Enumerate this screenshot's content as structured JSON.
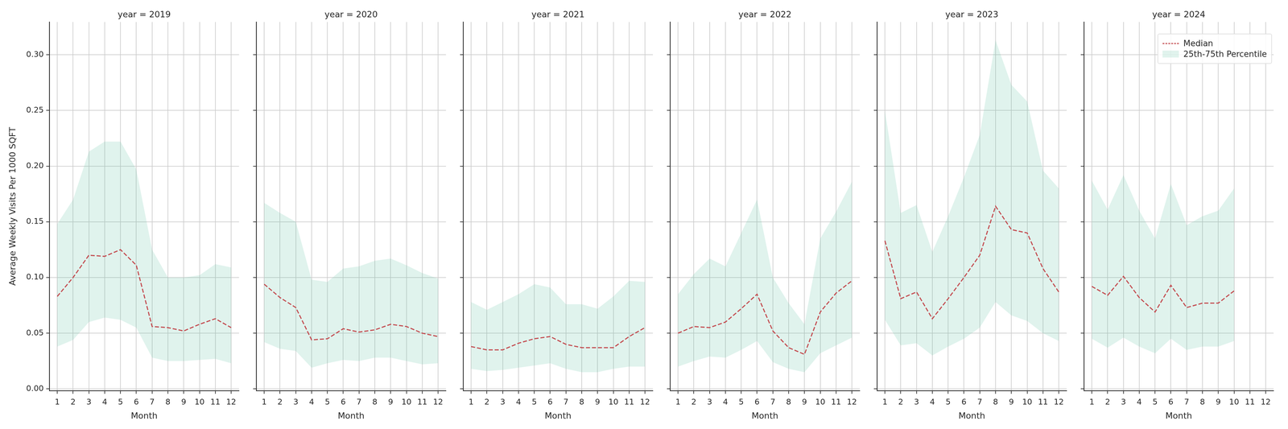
{
  "chart_data": [
    {
      "type": "line",
      "title": "year = 2019",
      "x_label": "Month",
      "y_label": "Average Weekly Visits Per 1000 SQFT",
      "categories": [
        "1",
        "2",
        "3",
        "4",
        "5",
        "6",
        "7",
        "8",
        "9",
        "10",
        "11",
        "12"
      ],
      "ylim": [
        -0.0016,
        0.3294
      ],
      "yticks": [
        {
          "value": 0,
          "label": "0.00"
        },
        {
          "value": 0.05,
          "label": "0.05"
        },
        {
          "value": 0.1,
          "label": "0.10"
        },
        {
          "value": 0.15,
          "label": "0.15"
        },
        {
          "value": 0.2,
          "label": "0.20"
        },
        {
          "value": 0.25,
          "label": "0.25"
        },
        {
          "value": 0.3,
          "label": "0.30"
        }
      ],
      "grid": true,
      "series": [
        {
          "name": "Median",
          "type": "line",
          "color": "#c44e52",
          "line_style": "dashed",
          "values": [
            0.083,
            0.1,
            0.12,
            0.119,
            0.125,
            0.111,
            0.056,
            0.055,
            0.052,
            0.058,
            0.063,
            0.055
          ]
        },
        {
          "name": "25th-75th Percentile",
          "type": "band",
          "color": "#66c2a5",
          "lower": [
            0.038,
            0.044,
            0.06,
            0.064,
            0.062,
            0.055,
            0.028,
            0.025,
            0.025,
            0.026,
            0.027,
            0.023
          ],
          "upper": [
            0.148,
            0.17,
            0.213,
            0.222,
            0.222,
            0.197,
            0.125,
            0.1,
            0.1,
            0.102,
            0.112,
            0.109
          ]
        }
      ]
    },
    {
      "type": "line",
      "title": "year = 2020",
      "x_label": "Month",
      "tick_labels": "x",
      "categories": [
        "1",
        "2",
        "3",
        "4",
        "5",
        "6",
        "7",
        "8",
        "9",
        "10",
        "11",
        "12"
      ],
      "ylim": [
        -0.0016,
        0.3294
      ],
      "yticks": [
        {
          "value": 0,
          "label": "0.00"
        },
        {
          "value": 0.05,
          "label": "0.05"
        },
        {
          "value": 0.1,
          "label": "0.10"
        },
        {
          "value": 0.15,
          "label": "0.15"
        },
        {
          "value": 0.2,
          "label": "0.20"
        },
        {
          "value": 0.25,
          "label": "0.25"
        },
        {
          "value": 0.3,
          "label": "0.30"
        }
      ],
      "grid": true,
      "series": [
        {
          "name": "Median",
          "type": "line",
          "color": "#c44e52",
          "line_style": "dashed",
          "values": [
            0.094,
            0.082,
            0.073,
            0.044,
            0.045,
            0.054,
            0.051,
            0.053,
            0.058,
            0.056,
            0.05,
            0.047
          ]
        },
        {
          "name": "25th-75th Percentile",
          "type": "band",
          "color": "#66c2a5",
          "lower": [
            0.042,
            0.036,
            0.034,
            0.019,
            0.023,
            0.026,
            0.025,
            0.028,
            0.028,
            0.025,
            0.022,
            0.023
          ],
          "upper": [
            0.167,
            0.158,
            0.15,
            0.098,
            0.096,
            0.108,
            0.11,
            0.115,
            0.117,
            0.111,
            0.104,
            0.099
          ]
        }
      ]
    },
    {
      "type": "line",
      "title": "year = 2021",
      "x_label": "Month",
      "tick_labels": "x",
      "categories": [
        "1",
        "2",
        "3",
        "4",
        "5",
        "6",
        "7",
        "8",
        "9",
        "10",
        "11",
        "12"
      ],
      "ylim": [
        -0.0016,
        0.3294
      ],
      "yticks": [
        {
          "value": 0,
          "label": "0.00"
        },
        {
          "value": 0.05,
          "label": "0.05"
        },
        {
          "value": 0.1,
          "label": "0.10"
        },
        {
          "value": 0.15,
          "label": "0.15"
        },
        {
          "value": 0.2,
          "label": "0.20"
        },
        {
          "value": 0.25,
          "label": "0.25"
        },
        {
          "value": 0.3,
          "label": "0.30"
        }
      ],
      "grid": true,
      "series": [
        {
          "name": "Median",
          "type": "line",
          "color": "#c44e52",
          "line_style": "dashed",
          "values": [
            0.038,
            0.035,
            0.035,
            0.041,
            0.045,
            0.047,
            0.04,
            0.037,
            0.037,
            0.037,
            0.047,
            0.055
          ]
        },
        {
          "name": "25th-75th Percentile",
          "type": "band",
          "color": "#66c2a5",
          "lower": [
            0.018,
            0.016,
            0.017,
            0.019,
            0.021,
            0.023,
            0.018,
            0.015,
            0.015,
            0.018,
            0.02,
            0.02
          ],
          "upper": [
            0.078,
            0.071,
            0.078,
            0.085,
            0.094,
            0.091,
            0.076,
            0.076,
            0.072,
            0.083,
            0.097,
            0.096
          ]
        }
      ]
    },
    {
      "type": "line",
      "title": "year = 2022",
      "x_label": "Month",
      "tick_labels": "x",
      "categories": [
        "1",
        "2",
        "3",
        "4",
        "5",
        "6",
        "7",
        "8",
        "9",
        "10",
        "11",
        "12"
      ],
      "ylim": [
        -0.0016,
        0.3294
      ],
      "yticks": [
        {
          "value": 0,
          "label": "0.00"
        },
        {
          "value": 0.05,
          "label": "0.05"
        },
        {
          "value": 0.1,
          "label": "0.10"
        },
        {
          "value": 0.15,
          "label": "0.15"
        },
        {
          "value": 0.2,
          "label": "0.20"
        },
        {
          "value": 0.25,
          "label": "0.25"
        },
        {
          "value": 0.3,
          "label": "0.30"
        }
      ],
      "grid": true,
      "series": [
        {
          "name": "Median",
          "type": "line",
          "color": "#c44e52",
          "line_style": "dashed",
          "values": [
            0.05,
            0.056,
            0.055,
            0.06,
            0.072,
            0.085,
            0.052,
            0.037,
            0.031,
            0.069,
            0.086,
            0.097
          ]
        },
        {
          "name": "25th-75th Percentile",
          "type": "band",
          "color": "#66c2a5",
          "lower": [
            0.02,
            0.025,
            0.029,
            0.028,
            0.035,
            0.043,
            0.024,
            0.018,
            0.015,
            0.032,
            0.039,
            0.046
          ],
          "upper": [
            0.085,
            0.103,
            0.117,
            0.11,
            0.14,
            0.17,
            0.1,
            0.077,
            0.058,
            0.135,
            0.159,
            0.186
          ]
        }
      ]
    },
    {
      "type": "line",
      "title": "year = 2023",
      "x_label": "Month",
      "tick_labels": "x",
      "categories": [
        "1",
        "2",
        "3",
        "4",
        "5",
        "6",
        "7",
        "8",
        "9",
        "10",
        "11",
        "12"
      ],
      "ylim": [
        -0.0016,
        0.3294
      ],
      "yticks": [
        {
          "value": 0,
          "label": "0.00"
        },
        {
          "value": 0.05,
          "label": "0.05"
        },
        {
          "value": 0.1,
          "label": "0.10"
        },
        {
          "value": 0.15,
          "label": "0.15"
        },
        {
          "value": 0.2,
          "label": "0.20"
        },
        {
          "value": 0.25,
          "label": "0.25"
        },
        {
          "value": 0.3,
          "label": "0.30"
        }
      ],
      "grid": true,
      "series": [
        {
          "name": "Median",
          "type": "line",
          "color": "#c44e52",
          "line_style": "dashed",
          "values": [
            0.133,
            0.081,
            0.087,
            0.063,
            0.081,
            0.1,
            0.12,
            0.164,
            0.143,
            0.14,
            0.108,
            0.087
          ]
        },
        {
          "name": "25th-75th Percentile",
          "type": "band",
          "color": "#66c2a5",
          "lower": [
            0.062,
            0.039,
            0.041,
            0.03,
            0.038,
            0.045,
            0.055,
            0.078,
            0.066,
            0.061,
            0.05,
            0.043
          ],
          "upper": [
            0.25,
            0.158,
            0.165,
            0.123,
            0.155,
            0.19,
            0.228,
            0.313,
            0.273,
            0.258,
            0.196,
            0.18
          ]
        }
      ]
    },
    {
      "type": "line",
      "title": "year = 2024",
      "x_label": "Month",
      "tick_labels": "x",
      "legend": "upper right",
      "categories": [
        "1",
        "2",
        "3",
        "4",
        "5",
        "6",
        "7",
        "8",
        "9",
        "10",
        "11",
        "12"
      ],
      "ylim": [
        -0.0016,
        0.3294
      ],
      "yticks": [
        {
          "value": 0,
          "label": "0.00"
        },
        {
          "value": 0.05,
          "label": "0.05"
        },
        {
          "value": 0.1,
          "label": "0.10"
        },
        {
          "value": 0.15,
          "label": "0.15"
        },
        {
          "value": 0.2,
          "label": "0.20"
        },
        {
          "value": 0.25,
          "label": "0.25"
        },
        {
          "value": 0.3,
          "label": "0.30"
        }
      ],
      "grid": true,
      "series": [
        {
          "name": "Median",
          "type": "line",
          "color": "#c44e52",
          "line_style": "dashed",
          "values": [
            0.092,
            0.084,
            0.101,
            0.082,
            0.069,
            0.093,
            0.073,
            0.077,
            0.077,
            0.088,
            null,
            null
          ]
        },
        {
          "name": "25th-75th Percentile",
          "type": "band",
          "color": "#66c2a5",
          "lower": [
            0.045,
            0.037,
            0.046,
            0.038,
            0.032,
            0.045,
            0.035,
            0.038,
            0.038,
            0.043,
            null,
            null
          ],
          "upper": [
            0.187,
            0.161,
            0.192,
            0.16,
            0.135,
            0.184,
            0.147,
            0.155,
            0.16,
            0.18,
            null,
            null
          ]
        }
      ]
    }
  ]
}
